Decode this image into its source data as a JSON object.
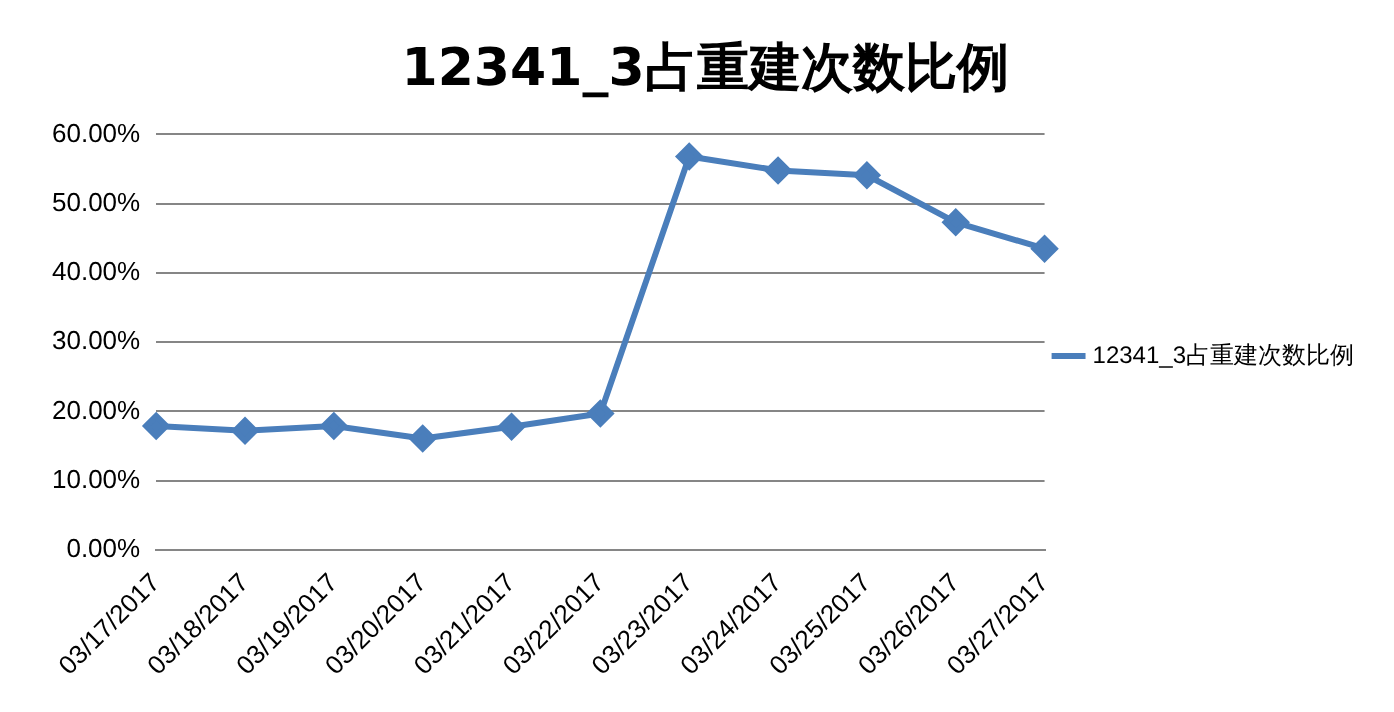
{
  "chart_data": {
    "type": "line",
    "title": "12341_3占重建次数比例",
    "categories": [
      "03/17/2017",
      "03/18/2017",
      "03/19/2017",
      "03/20/2017",
      "03/21/2017",
      "03/22/2017",
      "03/23/2017",
      "03/24/2017",
      "03/25/2017",
      "03/26/2017",
      "03/27/2017"
    ],
    "series": [
      {
        "name": "12341_3占重建次数比例",
        "color": "#4a7ebb",
        "values": [
          17.9,
          17.2,
          17.9,
          16.1,
          17.8,
          19.7,
          56.8,
          54.8,
          54.1,
          47.3,
          43.5
        ]
      }
    ],
    "ylim": [
      0,
      60
    ],
    "yticks": [
      {
        "value": 0,
        "label": "0.00%"
      },
      {
        "value": 10,
        "label": "10.00%"
      },
      {
        "value": 20,
        "label": "20.00%"
      },
      {
        "value": 30,
        "label": "30.00%"
      },
      {
        "value": 40,
        "label": "40.00%"
      },
      {
        "value": 50,
        "label": "50.00%"
      },
      {
        "value": 60,
        "label": "60.00%"
      }
    ],
    "grid": "y",
    "legend": "right",
    "marker": "diamond",
    "line_style": "solid"
  }
}
